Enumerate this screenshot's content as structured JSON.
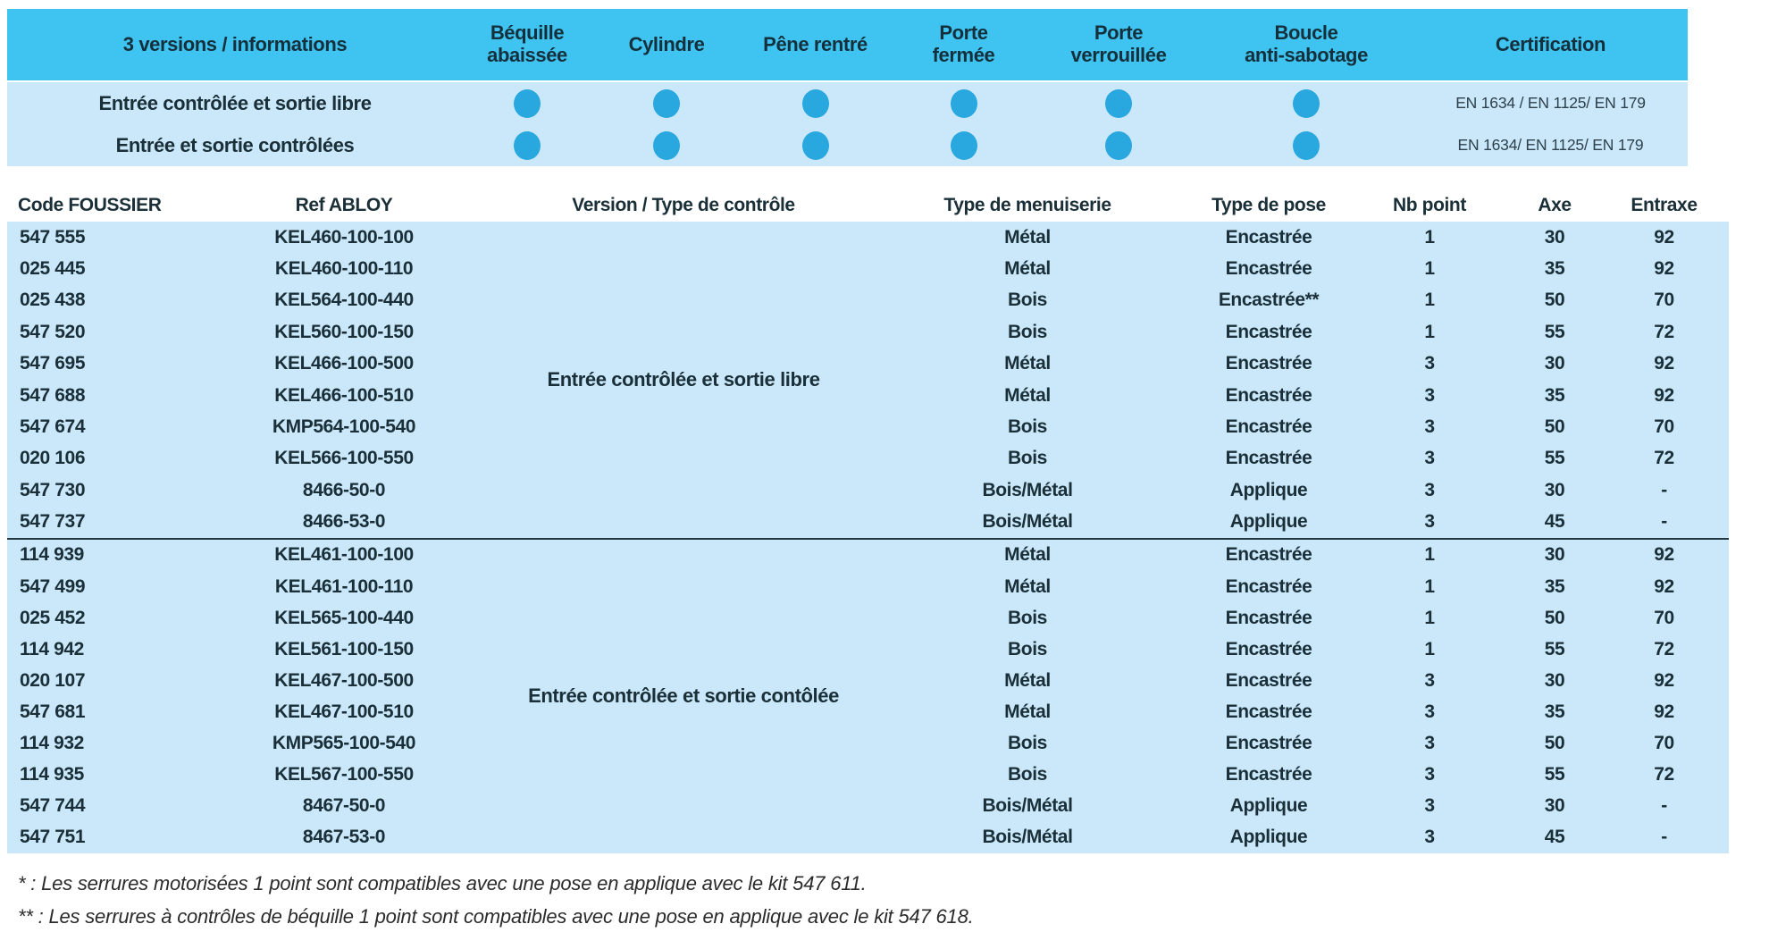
{
  "legend": {
    "title": "3 versions / informations",
    "feature_columns": [
      "Béquille\nabaissée",
      "Cylindre",
      "Pêne rentré",
      "Porte\nfermée",
      "Porte\nverrouillée",
      "Boucle\nanti-sabotage"
    ],
    "certification_header": "Certification",
    "rows": [
      {
        "label": "Entrée contrôlée et sortie libre",
        "dots": [
          true,
          true,
          true,
          true,
          true,
          true
        ],
        "certification": "EN 1634 / EN 1125/ EN 179"
      },
      {
        "label": "Entrée et sortie contrôlées",
        "dots": [
          true,
          true,
          true,
          true,
          true,
          true
        ],
        "certification": "EN 1634/ EN 1125/ EN 179"
      }
    ]
  },
  "table": {
    "headers": [
      "Code FOUSSIER",
      "Ref ABLOY",
      "Version / Type de contrôle",
      "Type de menuiserie",
      "Type de pose",
      "Nb point",
      "Axe",
      "Entraxe"
    ],
    "groups": [
      {
        "version_label": "Entrée contrôlée et sortie libre",
        "rows": [
          [
            "547 555",
            "KEL460-100-100",
            "Métal",
            "Encastrée",
            "1",
            "30",
            "92"
          ],
          [
            "025 445",
            "KEL460-100-110",
            "Métal",
            "Encastrée",
            "1",
            "35",
            "92"
          ],
          [
            "025 438",
            "KEL564-100-440",
            "Bois",
            "Encastrée**",
            "1",
            "50",
            "70"
          ],
          [
            "547 520",
            "KEL560-100-150",
            "Bois",
            "Encastrée",
            "1",
            "55",
            "72"
          ],
          [
            "547 695",
            "KEL466-100-500",
            "Métal",
            "Encastrée",
            "3",
            "30",
            "92"
          ],
          [
            "547 688",
            "KEL466-100-510",
            "Métal",
            "Encastrée",
            "3",
            "35",
            "92"
          ],
          [
            "547 674",
            "KMP564-100-540",
            "Bois",
            "Encastrée",
            "3",
            "50",
            "70"
          ],
          [
            "020 106",
            "KEL566-100-550",
            "Bois",
            "Encastrée",
            "3",
            "55",
            "72"
          ],
          [
            "547 730",
            "8466-50-0",
            "Bois/Métal",
            "Applique",
            "3",
            "30",
            "-"
          ],
          [
            "547 737",
            "8466-53-0",
            "Bois/Métal",
            "Applique",
            "3",
            "45",
            "-"
          ]
        ]
      },
      {
        "version_label": "Entrée contrôlée et sortie contôlée",
        "rows": [
          [
            "114 939",
            "KEL461-100-100",
            "Métal",
            "Encastrée",
            "1",
            "30",
            "92"
          ],
          [
            "547 499",
            "KEL461-100-110",
            "Métal",
            "Encastrée",
            "1",
            "35",
            "92"
          ],
          [
            "025 452",
            "KEL565-100-440",
            "Bois",
            "Encastrée",
            "1",
            "50",
            "70"
          ],
          [
            "114 942",
            "KEL561-100-150",
            "Bois",
            "Encastrée",
            "1",
            "55",
            "72"
          ],
          [
            "020 107",
            "KEL467-100-500",
            "Métal",
            "Encastrée",
            "3",
            "30",
            "92"
          ],
          [
            "547 681",
            "KEL467-100-510",
            "Métal",
            "Encastrée",
            "3",
            "35",
            "92"
          ],
          [
            "114 932",
            "KMP565-100-540",
            "Bois",
            "Encastrée",
            "3",
            "50",
            "70"
          ],
          [
            "114 935",
            "KEL567-100-550",
            "Bois",
            "Encastrée",
            "3",
            "55",
            "72"
          ],
          [
            "547 744",
            "8467-50-0",
            "Bois/Métal",
            "Applique",
            "3",
            "30",
            "-"
          ],
          [
            "547 751",
            "8467-53-0",
            "Bois/Métal",
            "Applique",
            "3",
            "45",
            "-"
          ]
        ]
      }
    ]
  },
  "footnotes": [
    "* : Les serrures motorisées 1 point sont compatibles avec une pose en applique avec le kit 547 611.",
    "** : Les serrures à contrôles de béquille 1 point sont compatibles avec une pose en applique avec le kit 547 618."
  ],
  "colors": {
    "header_cyan": "#3FC3F0",
    "row_light_blue": "#CAE8FA",
    "dot_blue": "#29A8E0",
    "text_dark": "#1A2F38"
  }
}
